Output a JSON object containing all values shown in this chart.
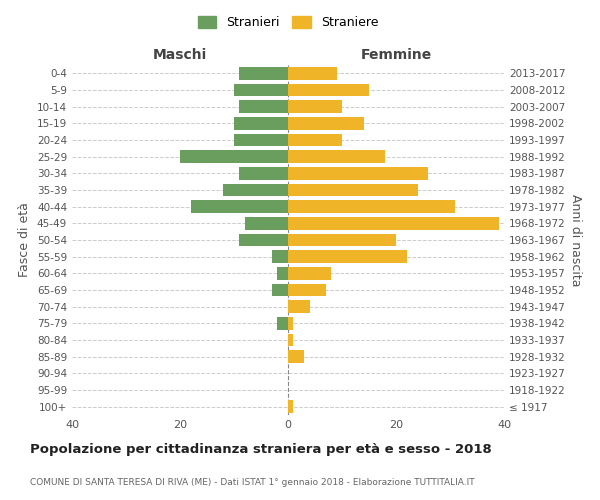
{
  "age_groups": [
    "100+",
    "95-99",
    "90-94",
    "85-89",
    "80-84",
    "75-79",
    "70-74",
    "65-69",
    "60-64",
    "55-59",
    "50-54",
    "45-49",
    "40-44",
    "35-39",
    "30-34",
    "25-29",
    "20-24",
    "15-19",
    "10-14",
    "5-9",
    "0-4"
  ],
  "birth_years": [
    "≤ 1917",
    "1918-1922",
    "1923-1927",
    "1928-1932",
    "1933-1937",
    "1938-1942",
    "1943-1947",
    "1948-1952",
    "1953-1957",
    "1958-1962",
    "1963-1967",
    "1968-1972",
    "1973-1977",
    "1978-1982",
    "1983-1987",
    "1988-1992",
    "1993-1997",
    "1998-2002",
    "2003-2007",
    "2008-2012",
    "2013-2017"
  ],
  "maschi": [
    0,
    0,
    0,
    0,
    0,
    2,
    0,
    3,
    2,
    3,
    9,
    8,
    18,
    12,
    9,
    20,
    10,
    10,
    9,
    10,
    9
  ],
  "femmine": [
    1,
    0,
    0,
    3,
    1,
    1,
    4,
    7,
    8,
    22,
    20,
    39,
    31,
    24,
    26,
    18,
    10,
    14,
    10,
    15,
    9
  ],
  "maschi_color": "#6a9e5e",
  "femmine_color": "#f0b429",
  "grid_color": "#cccccc",
  "title": "Popolazione per cittadinanza straniera per età e sesso - 2018",
  "subtitle": "COMUNE DI SANTA TERESA DI RIVA (ME) - Dati ISTAT 1° gennaio 2018 - Elaborazione TUTTITALIA.IT",
  "ylabel_left": "Fasce di età",
  "ylabel_right": "Anni di nascita",
  "legend_maschi": "Stranieri",
  "legend_femmine": "Straniere",
  "xlim": 40,
  "header_maschi": "Maschi",
  "header_femmine": "Femmine"
}
